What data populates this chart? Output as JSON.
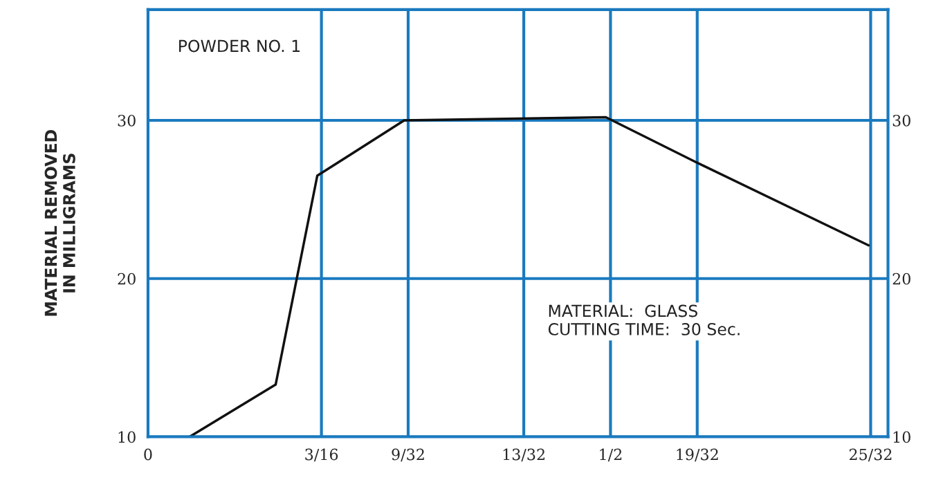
{
  "chart_data": {
    "type": "line",
    "ylabel": "MATERIAL REMOVED\nIN MILLIGRAMS",
    "x": [
      0.045,
      0.138,
      0.183,
      0.277,
      0.495,
      0.591,
      0.779
    ],
    "series": [
      {
        "color": "#111111",
        "values": [
          10,
          13.3,
          26.5,
          30,
          30.2,
          27.4,
          22.1
        ]
      }
    ],
    "xlim": [
      0,
      0.8
    ],
    "ylim": [
      10,
      37
    ],
    "xticks": [
      {
        "value": 0,
        "label": "0"
      },
      {
        "value": 0.1875,
        "label": "3/16"
      },
      {
        "value": 0.28125,
        "label": "9/32"
      },
      {
        "value": 0.40625,
        "label": "13/32"
      },
      {
        "value": 0.5,
        "label": "1/2"
      },
      {
        "value": 0.59375,
        "label": "19/32"
      },
      {
        "value": 0.78125,
        "label": "25/32"
      }
    ],
    "yticks": [
      10,
      20,
      30
    ],
    "y2lim": [
      10,
      37
    ],
    "y2ticks": [
      10,
      20,
      30
    ],
    "grid": true,
    "annotations": [
      "POWDER NO. 1",
      "MATERIAL:  GLASS\nCUTTING TIME:  30 Sec."
    ]
  }
}
